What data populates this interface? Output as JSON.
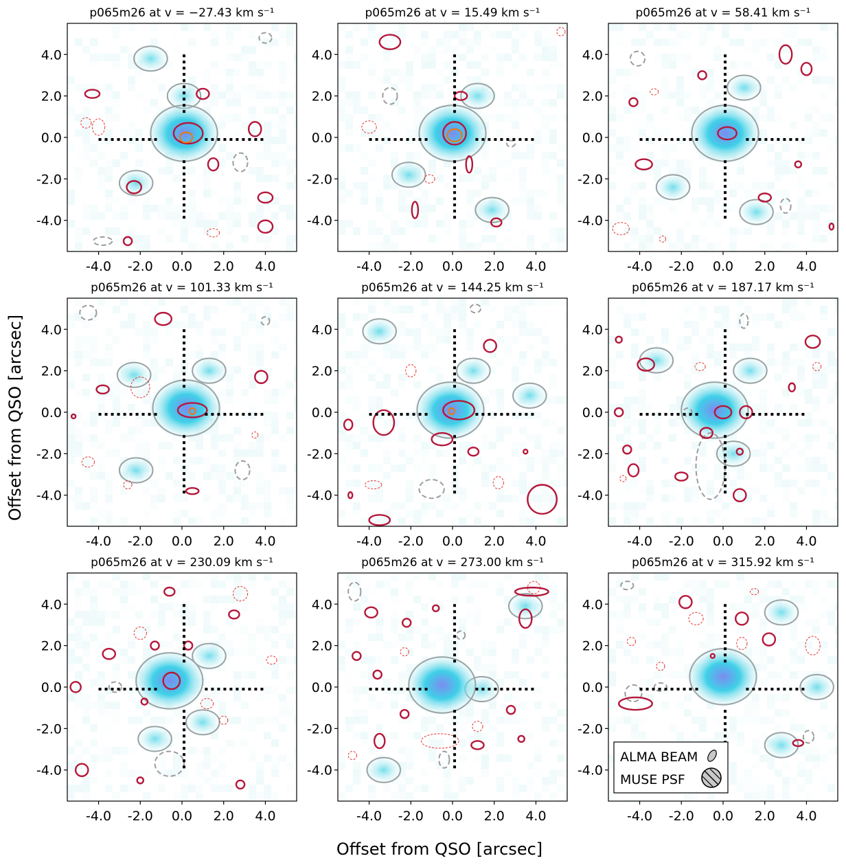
{
  "figure": {
    "xlabel": "Offset from QSO [arcsec]",
    "ylabel": "Offset from QSO [arcsec]",
    "legend": {
      "alma": "ALMA BEAM",
      "muse": "MUSE PSF",
      "placement": "lower-left of last panel"
    }
  },
  "chart_data": {
    "type": "heatmap",
    "field": "p065m26",
    "title_prefix": "p065m26 at v = ",
    "velocity_unit": "km s⁻¹",
    "xlim": [
      -5.5,
      5.5
    ],
    "ylim": [
      -5.5,
      5.5
    ],
    "xticks": [
      "-4.0",
      "-2.0",
      "0.0",
      "2.0",
      "4.0"
    ],
    "yticks": [
      "4.0",
      "2.0",
      "0.0",
      "-2.0",
      "-4.0"
    ],
    "crosshair": {
      "inner_gap_arcsec": 1.1,
      "outer_arcsec": 4.0
    },
    "colors": {
      "muse_hot": "#7b8cf0",
      "muse_mid": "#34cfe6",
      "muse_low": "#cdeff1",
      "muse_contour": "#9aa3a5",
      "alma_pos": "#b5173a",
      "alma_neg": "#e8302b",
      "alma_peak": "#f07800"
    },
    "panels": [
      {
        "velocity": "−27.43",
        "peak": [
          0.1,
          0.2
        ],
        "blobs": [
          [
            -2.2,
            -2.2
          ],
          [
            0.1,
            2.0
          ],
          [
            -1.5,
            3.8
          ]
        ],
        "alma": [
          [
            0.3,
            0.2,
            0.7,
            0.5
          ],
          [
            1.0,
            2.1,
            0.3,
            0.25
          ],
          [
            -2.3,
            -2.4,
            0.35,
            0.3
          ],
          [
            3.5,
            0.4,
            0.3,
            0.35
          ],
          [
            4.0,
            -2.9,
            0.35,
            0.25
          ],
          [
            -4.3,
            2.1,
            0.35,
            0.2
          ],
          [
            4.0,
            -4.3,
            0.35,
            0.3
          ],
          [
            1.5,
            -1.3,
            0.25,
            0.3
          ],
          [
            -2.6,
            -5.0,
            0.2,
            0.2
          ]
        ],
        "neg": [
          [
            2.8,
            -1.2,
            0.35,
            0.45
          ],
          [
            -3.8,
            -5.0,
            0.45,
            0.2
          ],
          [
            4.0,
            4.8,
            0.3,
            0.25
          ]
        ],
        "red": [
          [
            -4.0,
            0.5,
            0.3,
            0.4
          ],
          [
            -4.6,
            0.7,
            0.25,
            0.25
          ],
          [
            1.5,
            -4.6,
            0.3,
            0.2
          ]
        ],
        "peaks": [
          [
            0.2,
            0.0,
            0.3,
            0.25
          ]
        ]
      },
      {
        "velocity": "15.49",
        "peak": [
          0.0,
          0.2
        ],
        "blobs": [
          [
            -2.1,
            -1.8
          ],
          [
            1.2,
            2.0
          ],
          [
            1.9,
            -3.5
          ]
        ],
        "alma": [
          [
            0.1,
            0.2,
            0.55,
            0.55
          ],
          [
            -3.0,
            4.6,
            0.5,
            0.35
          ],
          [
            0.4,
            2.0,
            0.3,
            0.2
          ],
          [
            2.1,
            -4.1,
            0.25,
            0.2
          ],
          [
            -1.8,
            -3.5,
            0.15,
            0.4
          ],
          [
            0.8,
            -1.3,
            0.15,
            0.4
          ]
        ],
        "neg": [
          [
            -3.0,
            2.0,
            0.35,
            0.4
          ],
          [
            2.8,
            -0.3,
            0.2,
            0.15
          ]
        ],
        "red": [
          [
            -4.0,
            0.5,
            0.35,
            0.3
          ],
          [
            5.2,
            5.1,
            0.2,
            0.2
          ],
          [
            -1.1,
            -2.0,
            0.25,
            0.2
          ]
        ],
        "peaks": [
          [
            0.1,
            0.1,
            0.35,
            0.3
          ]
        ]
      },
      {
        "velocity": "58.41",
        "peak": [
          0.1,
          0.2
        ],
        "blobs": [
          [
            -2.4,
            -2.4
          ],
          [
            1.0,
            2.4
          ],
          [
            1.6,
            -3.6
          ]
        ],
        "alma": [
          [
            0.2,
            0.2,
            0.45,
            0.3
          ],
          [
            -3.8,
            -1.3,
            0.4,
            0.25
          ],
          [
            3.0,
            4.0,
            0.3,
            0.45
          ],
          [
            4.0,
            3.3,
            0.25,
            0.3
          ],
          [
            -4.3,
            1.7,
            0.2,
            0.2
          ],
          [
            -1.0,
            3.0,
            0.2,
            0.2
          ],
          [
            2.0,
            -2.9,
            0.3,
            0.2
          ],
          [
            3.6,
            -1.3,
            0.15,
            0.15
          ],
          [
            5.2,
            -4.3,
            0.1,
            0.15
          ]
        ],
        "neg": [
          [
            -4.1,
            3.8,
            0.35,
            0.35
          ],
          [
            3.0,
            -3.3,
            0.25,
            0.35
          ]
        ],
        "red": [
          [
            -4.9,
            -4.4,
            0.4,
            0.3
          ],
          [
            -3.3,
            2.2,
            0.2,
            0.15
          ],
          [
            -2.9,
            -4.9,
            0.15,
            0.15
          ]
        ],
        "peaks": []
      },
      {
        "velocity": "101.33",
        "peak": [
          0.2,
          0.2
        ],
        "blobs": [
          [
            -2.3,
            1.8
          ],
          [
            -2.2,
            -2.8
          ],
          [
            1.3,
            2.0
          ]
        ],
        "alma": [
          [
            0.5,
            0.1,
            0.7,
            0.35
          ],
          [
            -0.9,
            4.5,
            0.4,
            0.3
          ],
          [
            -3.8,
            1.1,
            0.3,
            0.2
          ],
          [
            3.8,
            1.7,
            0.3,
            0.3
          ],
          [
            0.5,
            -3.8,
            0.3,
            0.15
          ],
          [
            -5.2,
            -0.2,
            0.1,
            0.1
          ]
        ],
        "neg": [
          [
            2.9,
            -2.8,
            0.35,
            0.45
          ],
          [
            -4.5,
            4.8,
            0.4,
            0.35
          ],
          [
            4.0,
            4.4,
            0.2,
            0.2
          ]
        ],
        "red": [
          [
            -2.0,
            1.2,
            0.45,
            0.5
          ],
          [
            -4.5,
            -2.4,
            0.3,
            0.25
          ],
          [
            -2.6,
            -3.5,
            0.2,
            0.2
          ],
          [
            3.5,
            -1.1,
            0.15,
            0.15
          ]
        ],
        "peaks": [
          [
            0.5,
            0.05,
            0.15,
            0.15
          ]
        ]
      },
      {
        "velocity": "144.25",
        "peak": [
          -0.1,
          0.1
        ],
        "blobs": [
          [
            1.0,
            2.0
          ],
          [
            3.7,
            0.8
          ],
          [
            -3.5,
            3.9
          ]
        ],
        "alma": [
          [
            0.3,
            0.1,
            0.75,
            0.45
          ],
          [
            -3.3,
            -0.5,
            0.5,
            0.6
          ],
          [
            -0.5,
            -1.3,
            0.5,
            0.3
          ],
          [
            1.8,
            3.2,
            0.3,
            0.3
          ],
          [
            1.0,
            -1.9,
            0.25,
            0.2
          ],
          [
            4.3,
            -4.2,
            0.7,
            0.7
          ],
          [
            -5.0,
            -0.6,
            0.2,
            0.25
          ],
          [
            -3.5,
            -5.2,
            0.5,
            0.25
          ],
          [
            3.5,
            -1.9,
            0.1,
            0.1
          ],
          [
            -4.9,
            -4.0,
            0.1,
            0.15
          ]
        ],
        "neg": [
          [
            -1.0,
            -3.7,
            0.6,
            0.45
          ],
          [
            1.1,
            5.0,
            0.25,
            0.2
          ]
        ],
        "red": [
          [
            -3.8,
            -3.5,
            0.4,
            0.2
          ],
          [
            -2.0,
            2.0,
            0.25,
            0.3
          ],
          [
            2.2,
            -3.4,
            0.25,
            0.3
          ]
        ],
        "peaks": [
          [
            -0.05,
            0.05,
            0.15,
            0.15
          ]
        ]
      },
      {
        "velocity": "187.17",
        "peak": [
          -0.4,
          0.1
        ],
        "blobs": [
          [
            1.3,
            2.0
          ],
          [
            0.5,
            -2.0
          ],
          [
            -3.2,
            2.5
          ]
        ],
        "alma": [
          [
            0.0,
            0.0,
            0.4,
            0.3
          ],
          [
            -3.7,
            2.3,
            0.4,
            0.3
          ],
          [
            -5.0,
            0.0,
            0.2,
            0.2
          ],
          [
            -0.8,
            -1.0,
            0.3,
            0.25
          ],
          [
            -4.6,
            -1.8,
            0.2,
            0.2
          ],
          [
            -4.3,
            -2.8,
            0.25,
            0.3
          ],
          [
            -2.0,
            -3.1,
            0.3,
            0.2
          ],
          [
            1.1,
            0.0,
            0.3,
            0.3
          ],
          [
            4.3,
            3.4,
            0.35,
            0.3
          ],
          [
            3.3,
            1.2,
            0.15,
            0.2
          ],
          [
            0.8,
            -1.9,
            0.15,
            0.15
          ],
          [
            0.8,
            -4.0,
            0.3,
            0.3
          ],
          [
            -5.0,
            3.5,
            0.15,
            0.15
          ]
        ],
        "neg": [
          [
            -0.6,
            -2.6,
            0.7,
            1.6
          ],
          [
            1.0,
            4.4,
            0.2,
            0.35
          ],
          [
            -1.7,
            0.0,
            0.2,
            0.2
          ]
        ],
        "red": [
          [
            4.5,
            2.2,
            0.2,
            0.2
          ],
          [
            -4.8,
            -3.2,
            0.15,
            0.15
          ],
          [
            -1.1,
            2.2,
            0.25,
            0.2
          ]
        ],
        "peaks": []
      },
      {
        "velocity": "230.09",
        "peak": [
          -0.6,
          0.3
        ],
        "blobs": [
          [
            1.0,
            -1.7
          ],
          [
            1.3,
            1.5
          ],
          [
            -1.3,
            -2.5
          ]
        ],
        "alma": [
          [
            -0.5,
            0.3,
            0.4,
            0.4
          ],
          [
            -4.8,
            -4.0,
            0.3,
            0.3
          ],
          [
            -5.1,
            0.0,
            0.25,
            0.25
          ],
          [
            -3.5,
            1.6,
            0.3,
            0.25
          ],
          [
            -0.6,
            4.6,
            0.25,
            0.2
          ],
          [
            2.5,
            3.5,
            0.25,
            0.2
          ],
          [
            -1.3,
            2.0,
            0.2,
            0.2
          ],
          [
            0.3,
            2.0,
            0.2,
            0.2
          ],
          [
            2.8,
            -4.7,
            0.2,
            0.2
          ],
          [
            -2.0,
            -4.5,
            0.15,
            0.15
          ],
          [
            -1.8,
            -0.7,
            0.15,
            0.15
          ]
        ],
        "neg": [
          [
            -0.6,
            -3.7,
            0.7,
            0.6
          ],
          [
            -3.2,
            0.0,
            0.3,
            0.25
          ]
        ],
        "red": [
          [
            2.8,
            4.5,
            0.35,
            0.35
          ],
          [
            -2.0,
            2.6,
            0.3,
            0.3
          ],
          [
            1.2,
            -0.8,
            0.3,
            0.25
          ],
          [
            2.0,
            -1.6,
            0.2,
            0.2
          ],
          [
            4.3,
            1.3,
            0.25,
            0.2
          ]
        ],
        "peaks": []
      },
      {
        "velocity": "273.00",
        "peak": [
          -0.5,
          0.1
        ],
        "blobs": [
          [
            1.4,
            -0.1
          ],
          [
            -3.3,
            -4.0
          ],
          [
            3.5,
            3.9
          ]
        ],
        "alma": [
          [
            3.8,
            4.6,
            0.8,
            0.2
          ],
          [
            -3.9,
            3.6,
            0.3,
            0.25
          ],
          [
            -2.2,
            3.1,
            0.2,
            0.2
          ],
          [
            3.5,
            3.3,
            0.3,
            0.45
          ],
          [
            -4.6,
            1.5,
            0.2,
            0.2
          ],
          [
            -3.6,
            0.6,
            0.2,
            0.2
          ],
          [
            2.8,
            -1.1,
            0.2,
            0.2
          ],
          [
            -2.3,
            -1.3,
            0.2,
            0.2
          ],
          [
            -3.5,
            -2.6,
            0.25,
            0.35
          ],
          [
            1.2,
            -2.8,
            0.3,
            0.2
          ],
          [
            3.3,
            -2.5,
            0.15,
            0.15
          ],
          [
            -0.8,
            3.8,
            0.15,
            0.15
          ]
        ],
        "neg": [
          [
            -4.7,
            4.6,
            0.3,
            0.45
          ],
          [
            0.4,
            2.5,
            0.2,
            0.2
          ],
          [
            -0.4,
            -3.5,
            0.25,
            0.4
          ]
        ],
        "red": [
          [
            -0.6,
            -2.6,
            0.9,
            0.35
          ],
          [
            3.9,
            4.8,
            0.3,
            0.3
          ],
          [
            -4.8,
            -3.3,
            0.2,
            0.2
          ],
          [
            -2.3,
            1.7,
            0.2,
            0.2
          ],
          [
            1.2,
            -1.9,
            0.25,
            0.25
          ]
        ],
        "peaks": []
      },
      {
        "velocity": "315.92",
        "peak": [
          0.0,
          0.5
        ],
        "blobs": [
          [
            2.8,
            3.6
          ],
          [
            4.5,
            0.0
          ],
          [
            2.8,
            -2.8
          ]
        ],
        "alma": [
          [
            -4.2,
            -0.8,
            0.8,
            0.3
          ],
          [
            -1.8,
            4.1,
            0.3,
            0.3
          ],
          [
            0.9,
            3.3,
            0.3,
            0.3
          ],
          [
            2.2,
            2.3,
            0.3,
            0.3
          ],
          [
            3.6,
            -2.7,
            0.25,
            0.15
          ],
          [
            -0.5,
            1.5,
            0.1,
            0.1
          ]
        ],
        "neg": [
          [
            -4.3,
            -0.3,
            0.4,
            0.4
          ],
          [
            -3.0,
            0.0,
            0.3,
            0.2
          ],
          [
            -4.6,
            4.9,
            0.3,
            0.2
          ],
          [
            4.1,
            -2.4,
            0.25,
            0.3
          ]
        ],
        "red": [
          [
            4.3,
            2.0,
            0.35,
            0.45
          ],
          [
            -1.3,
            3.3,
            0.35,
            0.3
          ],
          [
            0.9,
            2.1,
            0.25,
            0.3
          ],
          [
            -4.4,
            2.2,
            0.2,
            0.2
          ],
          [
            -3.0,
            1.0,
            0.2,
            0.2
          ],
          [
            1.5,
            4.6,
            0.2,
            0.15
          ]
        ],
        "peaks": []
      }
    ]
  }
}
